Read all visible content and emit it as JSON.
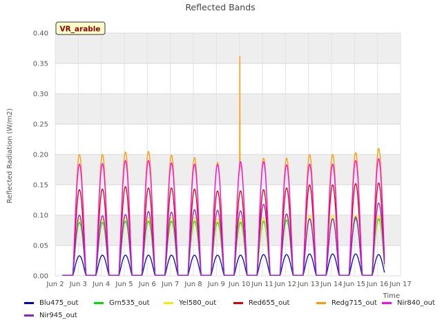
{
  "chart_data": {
    "type": "line",
    "title": "Reflected Bands",
    "xlabel": "Time",
    "ylabel": "Reflected Radiation (W/m2)",
    "badge": "VR_arable",
    "ylim": [
      0,
      0.4
    ],
    "yticks": [
      "0.00",
      "0.05",
      "0.10",
      "0.15",
      "0.20",
      "0.25",
      "0.30",
      "0.35",
      "0.40"
    ],
    "xlim": [
      2,
      17
    ],
    "xticks": [
      "Jun 2",
      "Jun 3",
      "Jun 4",
      "Jun 5",
      "Jun 6",
      "Jun 7",
      "Jun 8",
      "Jun 9",
      "Jun 10",
      "Jun 11",
      "Jun 12",
      "Jun 13",
      "Jun 14",
      "Jun 15",
      "Jun 16",
      "Jun 17"
    ],
    "day_centers": [
      3.05,
      4.05,
      5.05,
      6.05,
      7.05,
      8.05,
      9.05,
      10.05,
      11.05,
      12.05,
      13.05,
      14.05,
      15.05,
      16.05
    ],
    "spike": {
      "series": "Redg715_out",
      "x": 10.02,
      "y": 0.362
    },
    "series": [
      {
        "name": "Blu475_out",
        "color": "#0000cc",
        "peaks": [
          0.033,
          0.034,
          0.034,
          0.034,
          0.034,
          0.034,
          0.034,
          0.034,
          0.035,
          0.035,
          0.036,
          0.036,
          0.036,
          0.035
        ]
      },
      {
        "name": "Grn535_out",
        "color": "#00dd00",
        "peaks": [
          0.088,
          0.088,
          0.09,
          0.09,
          0.09,
          0.09,
          0.088,
          0.088,
          0.09,
          0.092,
          0.094,
          0.094,
          0.094,
          0.094
        ]
      },
      {
        "name": "Yel580_out",
        "color": "#eeee00",
        "peaks": [
          0.094,
          0.094,
          0.096,
          0.096,
          0.096,
          0.096,
          0.094,
          0.094,
          0.096,
          0.098,
          0.1,
          0.1,
          0.1,
          0.1
        ]
      },
      {
        "name": "Red655_out",
        "color": "#dd0000",
        "peaks": [
          0.142,
          0.143,
          0.147,
          0.145,
          0.145,
          0.143,
          0.14,
          0.14,
          0.142,
          0.145,
          0.15,
          0.15,
          0.152,
          0.153
        ]
      },
      {
        "name": "Redg715_out",
        "color": "#ff9900",
        "peaks": [
          0.2,
          0.2,
          0.204,
          0.205,
          0.199,
          0.195,
          0.187,
          0.182,
          0.194,
          0.194,
          0.2,
          0.2,
          0.203,
          0.21
        ]
      },
      {
        "name": "Nir840_out",
        "color": "#ff00ff",
        "peaks": [
          0.184,
          0.185,
          0.19,
          0.19,
          0.186,
          0.184,
          0.183,
          0.188,
          0.188,
          0.183,
          0.184,
          0.184,
          0.19,
          0.193
        ]
      },
      {
        "name": "Nir945_out",
        "color": "#8822cc",
        "peaks": [
          0.1,
          0.099,
          0.101,
          0.106,
          0.105,
          0.109,
          0.108,
          0.107,
          0.118,
          0.102,
          0.094,
          0.094,
          0.097,
          0.12
        ]
      }
    ]
  }
}
